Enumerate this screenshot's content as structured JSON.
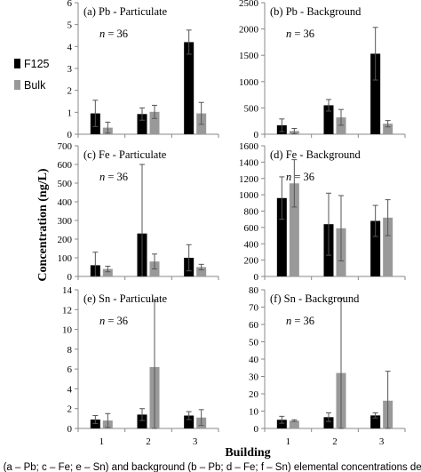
{
  "chart_data": {
    "panels": [
      {
        "type": "bar",
        "title": "(a) Pb - Particulate",
        "n_label": "= 36",
        "categories": [
          "1",
          "2",
          "3"
        ],
        "show_x_ticks": false,
        "ylim": [
          0,
          6
        ],
        "yticks": [
          0,
          1,
          2,
          3,
          4,
          5,
          6
        ],
        "series": [
          {
            "name": "F125",
            "values": [
              0.95,
              0.92,
              4.2
            ],
            "errors": [
              0.6,
              0.28,
              0.55
            ]
          },
          {
            "name": "Bulk",
            "values": [
              0.3,
              1.02,
              0.95
            ],
            "errors": [
              0.25,
              0.3,
              0.5
            ]
          }
        ]
      },
      {
        "type": "bar",
        "title": "(b) Pb - Background",
        "n_label": "= 36",
        "categories": [
          "1",
          "2",
          "3"
        ],
        "show_x_ticks": false,
        "ylim": [
          0,
          2500
        ],
        "yticks": [
          0,
          500,
          1000,
          1500,
          2000,
          2500
        ],
        "series": [
          {
            "name": "F125",
            "values": [
              170,
              550,
              1530
            ],
            "errors": [
              120,
              110,
              500
            ]
          },
          {
            "name": "Bulk",
            "values": [
              60,
              320,
              200
            ],
            "errors": [
              50,
              150,
              60
            ]
          }
        ]
      },
      {
        "type": "bar",
        "title": "(c) Fe - Particulate",
        "n_label": "= 36",
        "categories": [
          "1",
          "2",
          "3"
        ],
        "show_x_ticks": false,
        "ylim": [
          0,
          700
        ],
        "yticks": [
          0,
          100,
          200,
          300,
          400,
          500,
          600,
          700
        ],
        "series": [
          {
            "name": "F125",
            "values": [
              60,
              230,
              100
            ],
            "errors": [
              70,
              370,
              70
            ]
          },
          {
            "name": "Bulk",
            "values": [
              40,
              80,
              50
            ],
            "errors": [
              15,
              40,
              15
            ]
          }
        ]
      },
      {
        "type": "bar",
        "title": "(d) Fe - Background",
        "n_label": "= 36",
        "categories": [
          "1",
          "2",
          "3"
        ],
        "show_x_ticks": false,
        "ylim": [
          0,
          1600
        ],
        "yticks": [
          0,
          200,
          400,
          600,
          800,
          1000,
          1200,
          1400,
          1600
        ],
        "series": [
          {
            "name": "F125",
            "values": [
              960,
              640,
              680
            ],
            "errors": [
              260,
              380,
              190
            ]
          },
          {
            "name": "Bulk",
            "values": [
              1140,
              590,
              720
            ],
            "errors": [
              290,
              400,
              220
            ]
          }
        ]
      },
      {
        "type": "bar",
        "title": "(e) Sn - Particulate",
        "n_label": "= 36",
        "categories": [
          "1",
          "2",
          "3"
        ],
        "show_x_ticks": true,
        "ylim": [
          0,
          14
        ],
        "yticks": [
          0,
          2,
          4,
          6,
          8,
          10,
          12,
          14
        ],
        "series": [
          {
            "name": "F125",
            "values": [
              0.9,
              1.4,
              1.3
            ],
            "errors": [
              0.4,
              0.6,
              0.4
            ]
          },
          {
            "name": "Bulk",
            "values": [
              0.8,
              6.2,
              1.1
            ],
            "errors": [
              0.7,
              6.8,
              0.8
            ]
          }
        ]
      },
      {
        "type": "bar",
        "title": "(f) Sn - Background",
        "n_label": "= 36",
        "categories": [
          "1",
          "2",
          "3"
        ],
        "show_x_ticks": true,
        "ylim": [
          0,
          80
        ],
        "yticks": [
          0,
          10,
          20,
          30,
          40,
          50,
          60,
          70,
          80
        ],
        "series": [
          {
            "name": "F125",
            "values": [
              5,
              6.5,
              7.5
            ],
            "errors": [
              2,
              2.5,
              1.5
            ]
          },
          {
            "name": "Bulk",
            "values": [
              4.5,
              32,
              16
            ],
            "errors": [
              0.5,
              43,
              17
            ]
          }
        ]
      }
    ],
    "ylabel": "Concentration (ng/L)",
    "xlabel": "Building",
    "legend": [
      {
        "name": "F125",
        "color": "#000000"
      },
      {
        "name": "Bulk",
        "color": "#999999"
      }
    ],
    "legend_placement": "left"
  },
  "colors": {
    "F125": "#000000",
    "Bulk": "#999999",
    "axis": "#888888",
    "errorbar": "#555555"
  },
  "caption": "e (a – Pb; c – Fe; e – Sn) and background (b – Pb; d – Fe; f – Sn) elemental concentrations determ"
}
